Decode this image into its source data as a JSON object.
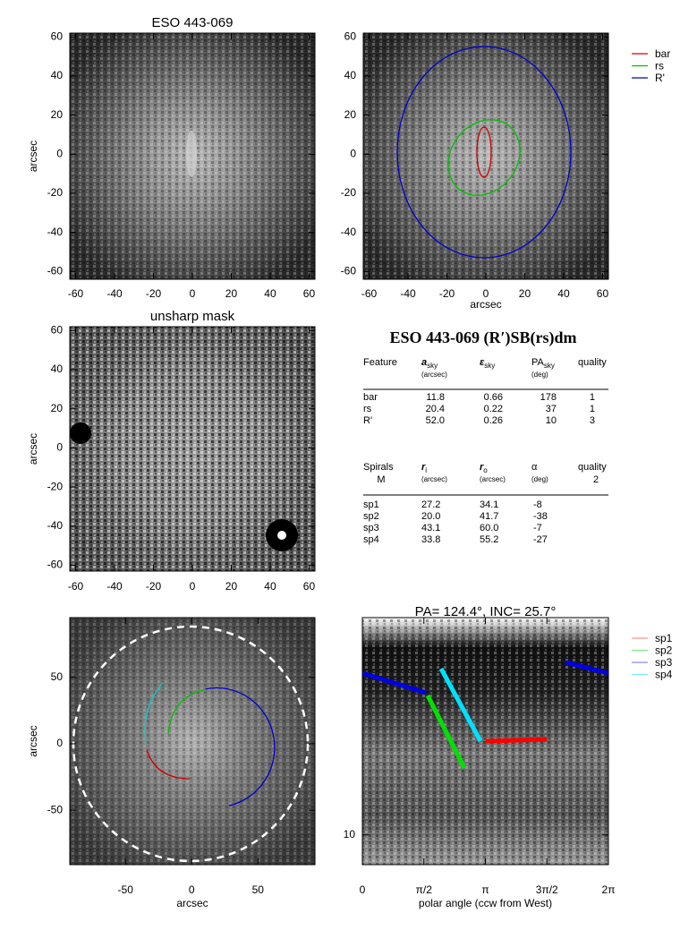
{
  "panel1": {
    "title": "ESO 443-069",
    "ylabel": "arcsec",
    "xlim": [
      -63,
      63
    ],
    "ylim": [
      -64,
      62
    ],
    "xticks": [
      -60,
      -40,
      -20,
      0,
      20,
      40,
      60
    ],
    "yticks": [
      -60,
      -40,
      -20,
      0,
      20,
      40,
      60
    ]
  },
  "panel2": {
    "xlabel": "arcsec",
    "xlim": [
      -63,
      63
    ],
    "ylim": [
      -64,
      62
    ],
    "xticks": [
      -60,
      -40,
      -20,
      0,
      20,
      40,
      60
    ],
    "yticks": [
      -60,
      -40,
      -20,
      0,
      20,
      40,
      60
    ],
    "legend": [
      {
        "name": "bar",
        "color": "#d00000"
      },
      {
        "name": "rs",
        "color": "#00c000"
      },
      {
        "name": "R'",
        "color": "#0000d0"
      }
    ]
  },
  "panel3": {
    "title": "unsharp mask",
    "ylabel": "arcsec",
    "xlim": [
      -63,
      63
    ],
    "ylim": [
      -63,
      62
    ],
    "xticks": [
      -60,
      -40,
      -20,
      0,
      20,
      40,
      60
    ],
    "yticks": [
      -60,
      -40,
      -20,
      0,
      20,
      40,
      60
    ]
  },
  "table": {
    "title": "ESO 443-069  (R′)SB(rs)dm",
    "header": [
      {
        "text": "Feature"
      },
      {
        "text": "a",
        "sub": "sky",
        "unit": "(arcsec)"
      },
      {
        "text": "ε",
        "sub": "sky"
      },
      {
        "text": "PA",
        "sub": "sky",
        "unit": "(deg)"
      },
      {
        "text": "quality"
      }
    ],
    "rows": [
      [
        "bar",
        "11.8",
        "0.66",
        "178",
        "1"
      ],
      [
        "rs",
        "20.4",
        "0.22",
        "37",
        "1"
      ],
      [
        "R'",
        "52.0",
        "0.26",
        "10",
        "3"
      ]
    ],
    "spiral_header": [
      {
        "text": "Spirals",
        "unit": "M"
      },
      {
        "text": "r",
        "sub": "i",
        "unit": "(arcsec)"
      },
      {
        "text": "r",
        "sub": "o",
        "unit": "(arcsec)"
      },
      {
        "text": "α",
        "unit": "(deg)"
      },
      {
        "text": "quality",
        "unit": "2"
      }
    ],
    "spiral_rows": [
      [
        "sp1",
        "27.2",
        "34.1",
        "-8"
      ],
      [
        "sp2",
        "20.0",
        "41.7",
        "-38"
      ],
      [
        "sp3",
        "43.1",
        "60.0",
        "-7"
      ],
      [
        "sp4",
        "33.8",
        "55.2",
        "-27"
      ]
    ]
  },
  "panel5": {
    "ylabel": "arcsec",
    "xlabel": "arcsec",
    "xlim": [
      -92,
      93
    ],
    "ylim": [
      -91,
      95
    ],
    "xticks": [
      -50,
      0,
      50
    ],
    "yticks": [
      -50,
      0,
      50
    ]
  },
  "panel6": {
    "title": "PA= 124.4°, INC=  25.7°",
    "xlabel": "polar angle (ccw from West)",
    "xlim": [
      0,
      6.2832
    ],
    "ylim": [
      8,
      51
    ],
    "log": true,
    "xticks": [
      0,
      {
        "value": 1.5708,
        "label": "π/2"
      },
      {
        "value": 3.1416,
        "label": "π"
      },
      {
        "value": 4.7124,
        "label": "3π/2"
      },
      {
        "value": 6.2832,
        "label": "2π"
      }
    ],
    "yticks": [
      10
    ],
    "legend": [
      {
        "name": "sp1",
        "color": "#ff5050"
      },
      {
        "name": "sp2",
        "color": "#30e030"
      },
      {
        "name": "sp3",
        "color": "#3040ff"
      },
      {
        "name": "sp4",
        "color": "#30e0ff"
      }
    ]
  }
}
